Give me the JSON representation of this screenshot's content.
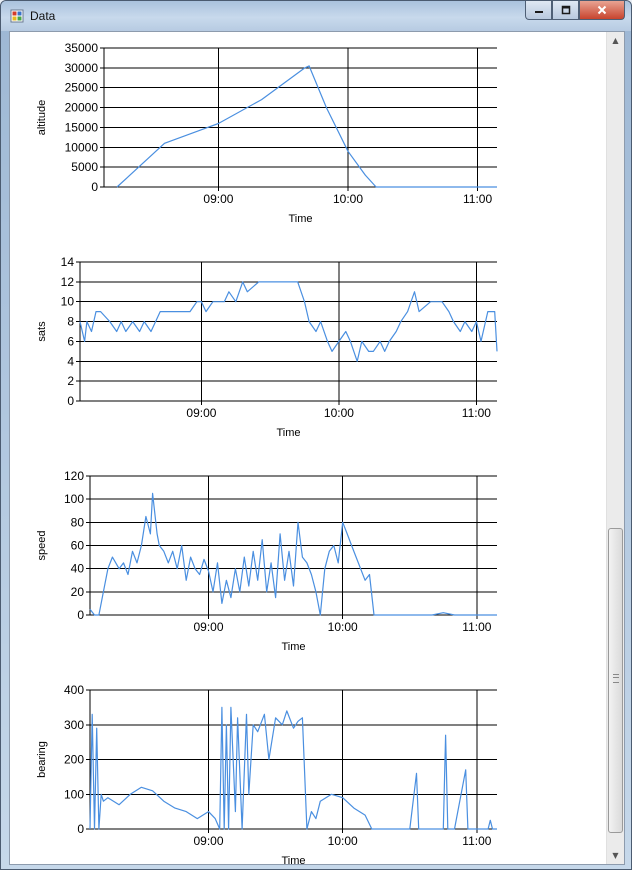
{
  "window": {
    "title": "Data"
  },
  "chart_data": [
    {
      "type": "line",
      "xlabel": "Time",
      "ylabel": "altitude",
      "ylim": [
        0,
        35000
      ],
      "yticks": [
        "0",
        "5000",
        "10000",
        "15000",
        "20000",
        "25000",
        "30000",
        "35000"
      ],
      "xlim": [
        "08:07",
        "11:09"
      ],
      "xticks": [
        "09:00",
        "10:00",
        "11:00"
      ],
      "grid": true,
      "color": "#4a8fe0",
      "x": [
        "08:13",
        "08:35",
        "09:00",
        "09:20",
        "09:40",
        "09:42",
        "09:50",
        "10:00",
        "10:08",
        "10:13",
        "10:30",
        "11:00",
        "11:09"
      ],
      "values": [
        0,
        11000,
        16000,
        22000,
        30000,
        30500,
        20000,
        9000,
        3000,
        0,
        0,
        0,
        0
      ]
    },
    {
      "type": "line",
      "xlabel": "Time",
      "ylabel": "sats",
      "ylim": [
        0,
        14
      ],
      "yticks": [
        "0",
        "2",
        "4",
        "6",
        "8",
        "10",
        "12",
        "14"
      ],
      "xlim": [
        "08:07",
        "11:09"
      ],
      "xticks": [
        "09:00",
        "10:00",
        "11:00"
      ],
      "grid": true,
      "color": "#4a8fe0",
      "x": [
        "08:07",
        "08:09",
        "08:10",
        "08:12",
        "08:14",
        "08:16",
        "08:20",
        "08:23",
        "08:25",
        "08:27",
        "08:30",
        "08:33",
        "08:35",
        "08:38",
        "08:42",
        "08:45",
        "08:50",
        "08:55",
        "08:58",
        "09:00",
        "09:02",
        "09:05",
        "09:10",
        "09:12",
        "09:15",
        "09:18",
        "09:20",
        "09:25",
        "09:30",
        "09:35",
        "09:40",
        "09:42",
        "09:45",
        "09:47",
        "09:50",
        "09:52",
        "09:55",
        "09:57",
        "10:00",
        "10:03",
        "10:05",
        "10:08",
        "10:10",
        "10:13",
        "10:15",
        "10:18",
        "10:20",
        "10:22",
        "10:25",
        "10:27",
        "10:30",
        "10:33",
        "10:35",
        "10:40",
        "10:45",
        "10:48",
        "10:50",
        "10:53",
        "10:55",
        "10:58",
        "11:00",
        "11:02",
        "11:05",
        "11:08",
        "11:09"
      ],
      "values": [
        8,
        6,
        8,
        7,
        9,
        9,
        8,
        7,
        8,
        7,
        8,
        7,
        8,
        7,
        9,
        9,
        9,
        9,
        10,
        10,
        9,
        10,
        10,
        11,
        10,
        12,
        11,
        12,
        12,
        12,
        12,
        12,
        10,
        8,
        7,
        8,
        6,
        5,
        6,
        7,
        6,
        4,
        6,
        5,
        5,
        6,
        5,
        6,
        7,
        8,
        9,
        11,
        9,
        10,
        10,
        9,
        8,
        7,
        8,
        7,
        8,
        6,
        9,
        9,
        5
      ]
    },
    {
      "type": "line",
      "xlabel": "Time",
      "ylabel": "speed",
      "ylim": [
        0,
        120
      ],
      "yticks": [
        "0",
        "20",
        "40",
        "60",
        "80",
        "100",
        "120"
      ],
      "xlim": [
        "08:07",
        "11:09"
      ],
      "xticks": [
        "09:00",
        "10:00",
        "11:00"
      ],
      "grid": true,
      "color": "#4a8fe0",
      "x": [
        "08:07",
        "08:09",
        "08:11",
        "08:13",
        "08:15",
        "08:17",
        "08:20",
        "08:22",
        "08:24",
        "08:26",
        "08:28",
        "08:30",
        "08:32",
        "08:34",
        "08:35",
        "08:37",
        "08:38",
        "08:40",
        "08:42",
        "08:44",
        "08:46",
        "08:48",
        "08:50",
        "08:52",
        "08:54",
        "08:56",
        "08:58",
        "09:00",
        "09:02",
        "09:04",
        "09:06",
        "09:08",
        "09:10",
        "09:12",
        "09:14",
        "09:16",
        "09:18",
        "09:20",
        "09:22",
        "09:24",
        "09:26",
        "09:28",
        "09:30",
        "09:32",
        "09:34",
        "09:36",
        "09:38",
        "09:40",
        "09:42",
        "09:44",
        "09:46",
        "09:48",
        "09:50",
        "09:52",
        "09:54",
        "09:56",
        "09:58",
        "10:00",
        "10:02",
        "10:04",
        "10:06",
        "10:08",
        "10:10",
        "10:12",
        "10:14",
        "10:30",
        "10:40",
        "10:45",
        "10:50",
        "11:00",
        "11:09"
      ],
      "values": [
        5,
        0,
        0,
        20,
        40,
        50,
        40,
        45,
        35,
        55,
        45,
        60,
        85,
        70,
        105,
        70,
        60,
        55,
        45,
        55,
        40,
        60,
        30,
        50,
        40,
        35,
        48,
        38,
        20,
        45,
        10,
        30,
        15,
        40,
        20,
        50,
        25,
        55,
        30,
        65,
        20,
        45,
        15,
        70,
        30,
        55,
        25,
        80,
        50,
        45,
        35,
        20,
        0,
        40,
        55,
        60,
        45,
        80,
        70,
        60,
        50,
        40,
        30,
        35,
        0,
        0,
        0,
        2,
        0,
        0,
        0
      ]
    },
    {
      "type": "line",
      "xlabel": "Time",
      "ylabel": "bearing",
      "ylim": [
        0,
        400
      ],
      "yticks": [
        "0",
        "100",
        "200",
        "300",
        "400"
      ],
      "xlim": [
        "08:07",
        "11:09"
      ],
      "xticks": [
        "09:00",
        "10:00",
        "11:00"
      ],
      "grid": true,
      "color": "#4a8fe0",
      "x": [
        "08:07",
        "08:08",
        "08:09",
        "08:10",
        "08:11",
        "08:12",
        "08:13",
        "08:15",
        "08:20",
        "08:25",
        "08:30",
        "08:35",
        "08:40",
        "08:45",
        "08:50",
        "08:55",
        "09:00",
        "09:03",
        "09:05",
        "09:06",
        "09:07",
        "09:08",
        "09:09",
        "09:10",
        "09:12",
        "09:13",
        "09:15",
        "09:17",
        "09:18",
        "09:20",
        "09:22",
        "09:25",
        "09:27",
        "09:30",
        "09:33",
        "09:35",
        "09:38",
        "09:40",
        "09:42",
        "09:44",
        "09:46",
        "09:48",
        "09:50",
        "09:55",
        "10:00",
        "10:05",
        "10:10",
        "10:13",
        "10:20",
        "10:30",
        "10:33",
        "10:34",
        "10:35",
        "10:40",
        "10:45",
        "10:46",
        "10:47",
        "10:50",
        "10:55",
        "10:56",
        "10:57",
        "11:00",
        "11:05",
        "11:06",
        "11:07",
        "11:09"
      ],
      "values": [
        0,
        330,
        0,
        290,
        0,
        100,
        80,
        90,
        70,
        100,
        120,
        110,
        80,
        60,
        50,
        30,
        50,
        30,
        0,
        350,
        0,
        300,
        0,
        350,
        50,
        320,
        0,
        330,
        100,
        300,
        280,
        330,
        200,
        320,
        300,
        340,
        290,
        310,
        320,
        0,
        50,
        30,
        80,
        100,
        90,
        60,
        40,
        0,
        0,
        0,
        160,
        0,
        0,
        0,
        0,
        270,
        0,
        0,
        170,
        0,
        0,
        0,
        0,
        25,
        0,
        0
      ]
    }
  ]
}
